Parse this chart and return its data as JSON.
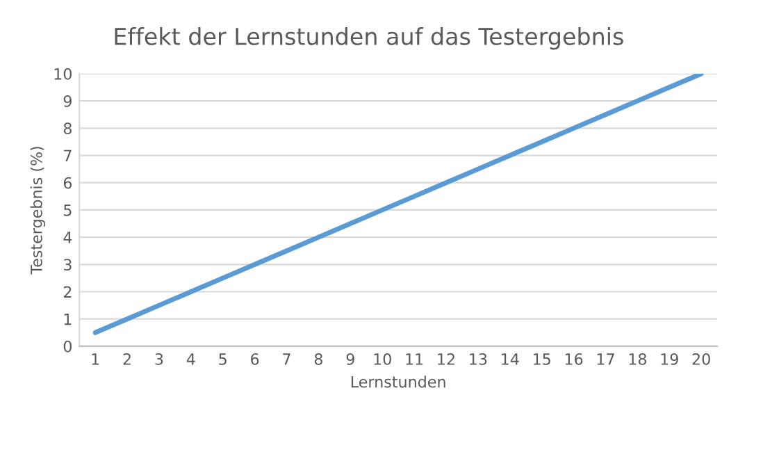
{
  "chart_data": {
    "type": "line",
    "title": "Effekt der Lernstunden auf das Testergebnis",
    "xlabel": "Lernstunden",
    "ylabel": "Testergebnis (%)",
    "categories": [
      "1",
      "2",
      "3",
      "4",
      "5",
      "6",
      "7",
      "8",
      "9",
      "10",
      "11",
      "12",
      "13",
      "14",
      "15",
      "16",
      "17",
      "18",
      "19",
      "20"
    ],
    "series": [
      {
        "color": "#5b9bd5",
        "values": [
          0.5,
          1,
          1.5,
          2,
          2.5,
          3,
          3.5,
          4,
          4.5,
          5,
          5.5,
          6,
          6.5,
          7,
          7.5,
          8,
          8.5,
          9,
          9.5,
          10
        ]
      }
    ],
    "ylim": [
      0,
      10
    ],
    "yticks": [
      0,
      1,
      2,
      3,
      4,
      5,
      6,
      7,
      8,
      9,
      10
    ],
    "grid": "y",
    "marker": "none",
    "line_style": "solid"
  }
}
